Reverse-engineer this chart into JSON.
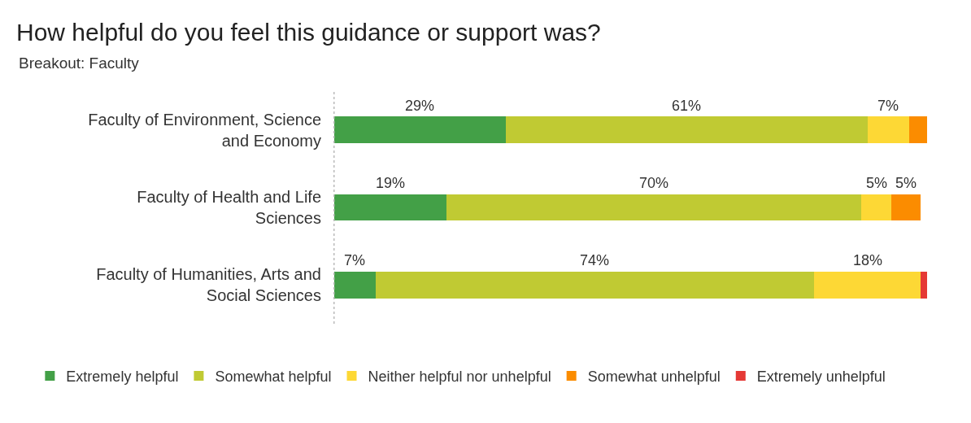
{
  "chart_data": {
    "type": "bar",
    "orientation": "horizontal",
    "stacked": true,
    "title": "How helpful do you feel this guidance or support was?",
    "subtitle": "Breakout: Faculty",
    "categories": [
      "Faculty of Environment, Science and Economy",
      "Faculty of Health and Life Sciences",
      "Faculty of Humanities, Arts and Social Sciences"
    ],
    "series": [
      {
        "name": "Extremely helpful",
        "color": "#43a047",
        "values": [
          29,
          19,
          7
        ],
        "value_labels": [
          "29%",
          "19%",
          "7%"
        ]
      },
      {
        "name": "Somewhat helpful",
        "color": "#c0ca33",
        "values": [
          61,
          70,
          74
        ],
        "value_labels": [
          "61%",
          "70%",
          "74%"
        ]
      },
      {
        "name": "Neither helpful nor unhelpful",
        "color": "#fdd835",
        "values": [
          7,
          5,
          18
        ],
        "value_labels": [
          "7%",
          "5%",
          "18%"
        ]
      },
      {
        "name": "Somewhat unhelpful",
        "color": "#fb8c00",
        "values": [
          3,
          5,
          0
        ],
        "value_labels": [
          null,
          "5%",
          null
        ]
      },
      {
        "name": "Extremely unhelpful",
        "color": "#e53935",
        "values": [
          0,
          0,
          1
        ],
        "value_labels": [
          null,
          null,
          null
        ]
      }
    ],
    "tick_labels": "y",
    "grid": false,
    "legend": "bottom"
  }
}
